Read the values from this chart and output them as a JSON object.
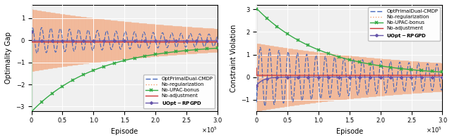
{
  "xlim": [
    0,
    300000
  ],
  "xticks": [
    0,
    50000,
    100000,
    150000,
    200000,
    250000,
    300000
  ],
  "xlabel": "Episode",
  "left_ylabel": "Optimality Gap",
  "right_ylabel": "Constraint Violation",
  "left_ylim": [
    -3.2,
    1.6
  ],
  "right_ylim": [
    -1.5,
    3.2
  ],
  "colors": {
    "opt_primal": "#4466bb",
    "no_reg": "#f5a070",
    "no_upac": "#33aa44",
    "no_adj": "#cc3333",
    "uopt": "#6655aa"
  },
  "figsize": [
    6.4,
    1.99
  ],
  "dpi": 100
}
